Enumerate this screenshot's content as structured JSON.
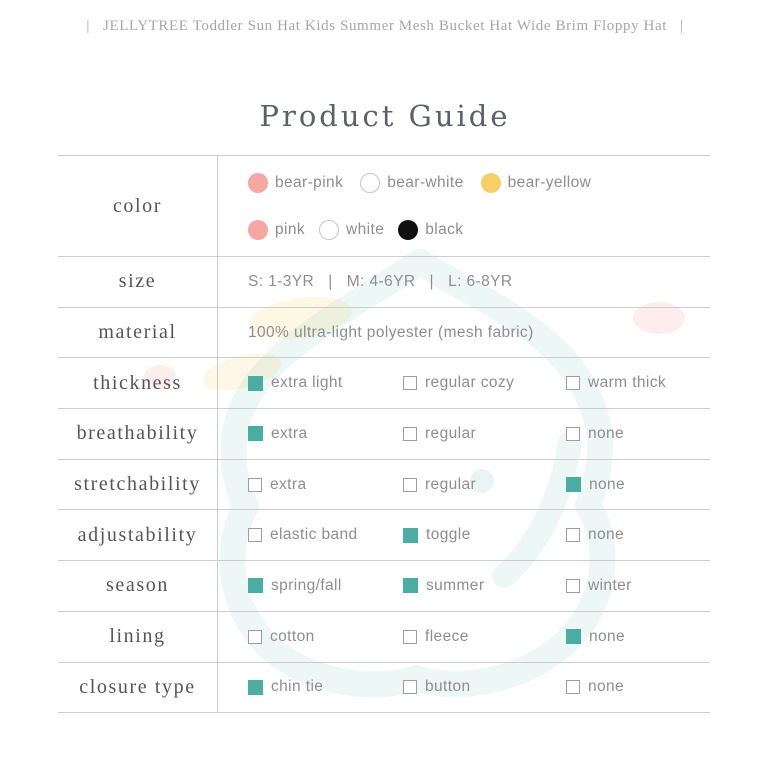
{
  "header": {
    "text": "|   JELLYTREE Toddler Sun Hat Kids Summer Mesh Bucket Hat Wide Brim Floppy Hat   |"
  },
  "title": "Product Guide",
  "theme": {
    "teal": "#49ada2",
    "pink": "#f5a7a4",
    "yellow": "#f6d067",
    "black": "#101010",
    "line_gray": "#cccccc",
    "label_color": "#54555a",
    "value_color": "#8d8e90",
    "header_color": "#a6a6a6"
  },
  "table": {
    "rows": [
      {
        "id": "color",
        "label": "color",
        "type": "swatches",
        "lines": [
          [
            {
              "name": "bear-pink",
              "swatch": "pink"
            },
            {
              "name": "bear-white",
              "swatch": "white"
            },
            {
              "name": "bear-yellow",
              "swatch": "yellow"
            }
          ],
          [
            {
              "name": "pink",
              "swatch": "pink"
            },
            {
              "name": "white",
              "swatch": "white"
            },
            {
              "name": "black",
              "swatch": "black"
            }
          ]
        ]
      },
      {
        "id": "size",
        "label": "size",
        "type": "text",
        "value": "S: 1-3YR   |   M: 4-6YR   |   L: 6-8YR"
      },
      {
        "id": "material",
        "label": "material",
        "type": "text",
        "value": "100% ultra-light polyester (mesh fabric)"
      },
      {
        "id": "thickness",
        "label": "thickness",
        "type": "options",
        "options": [
          {
            "label": "extra light",
            "checked": true
          },
          {
            "label": "regular cozy",
            "checked": false
          },
          {
            "label": "warm thick",
            "checked": false
          }
        ]
      },
      {
        "id": "breathability",
        "label": "breathability",
        "type": "options",
        "options": [
          {
            "label": "extra",
            "checked": true
          },
          {
            "label": "regular",
            "checked": false
          },
          {
            "label": "none",
            "checked": false
          }
        ]
      },
      {
        "id": "stretchability",
        "label": "stretchability",
        "type": "options",
        "options": [
          {
            "label": "extra",
            "checked": false
          },
          {
            "label": "regular",
            "checked": false
          },
          {
            "label": "none",
            "checked": true
          }
        ]
      },
      {
        "id": "adjustability",
        "label": "adjustability",
        "type": "options",
        "options": [
          {
            "label": "elastic band",
            "checked": false
          },
          {
            "label": "toggle",
            "checked": true
          },
          {
            "label": "none",
            "checked": false
          }
        ]
      },
      {
        "id": "season",
        "label": "season",
        "type": "options",
        "options": [
          {
            "label": "spring/fall",
            "checked": true
          },
          {
            "label": "summer",
            "checked": true
          },
          {
            "label": "winter",
            "checked": false
          }
        ]
      },
      {
        "id": "lining",
        "label": "lining",
        "type": "options",
        "options": [
          {
            "label": "cotton",
            "checked": false
          },
          {
            "label": "fleece",
            "checked": false
          },
          {
            "label": "none",
            "checked": true
          }
        ]
      },
      {
        "id": "closure-type",
        "label": "closure type",
        "type": "options",
        "options": [
          {
            "label": "chin tie",
            "checked": true
          },
          {
            "label": "button",
            "checked": false
          },
          {
            "label": "none",
            "checked": false
          }
        ]
      }
    ]
  }
}
